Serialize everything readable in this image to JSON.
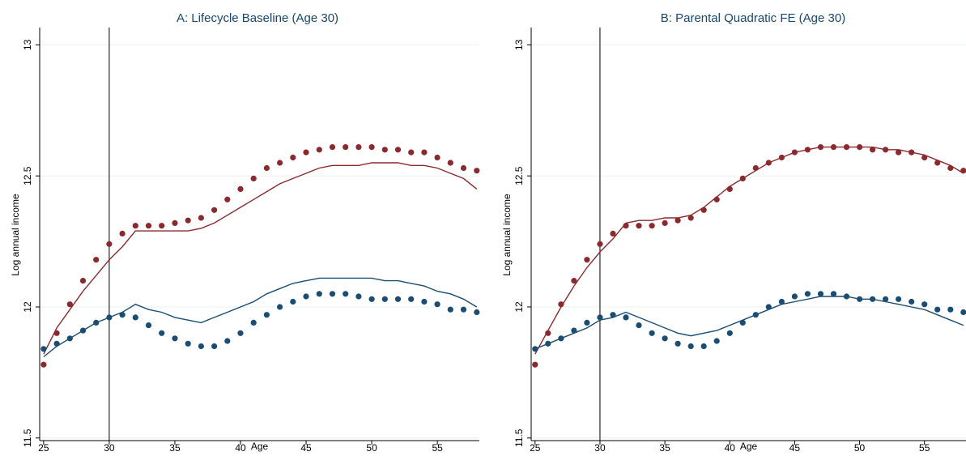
{
  "chart_data": [
    {
      "type": "scatter",
      "title": "A: Lifecycle Baseline (Age 30)",
      "xlabel": "Age",
      "ylabel": "Log annual income",
      "xlim": [
        24.7,
        58.2
      ],
      "ylim": [
        11.49,
        13.06
      ],
      "xticks": [
        25,
        30,
        35,
        40,
        45,
        50,
        55
      ],
      "yticks": [
        11.5,
        12,
        12.5,
        13
      ],
      "ytick_labels": [
        "11.5",
        "12",
        "12.5",
        "13"
      ],
      "reference_x": 30,
      "grid": "horizontal",
      "series": [
        {
          "kind": "points",
          "color": "#8b2a2e",
          "x": [
            25,
            26,
            27,
            28,
            29,
            30,
            31,
            32,
            33,
            34,
            35,
            36,
            37,
            38,
            39,
            40,
            41,
            42,
            43,
            44,
            45,
            46,
            47,
            48,
            49,
            50,
            51,
            52,
            53,
            54,
            55,
            56,
            57,
            58
          ],
          "y": [
            11.78,
            11.9,
            12.01,
            12.1,
            12.18,
            12.24,
            12.28,
            12.31,
            12.31,
            12.31,
            12.32,
            12.33,
            12.34,
            12.37,
            12.41,
            12.45,
            12.49,
            12.53,
            12.55,
            12.57,
            12.59,
            12.6,
            12.61,
            12.61,
            12.61,
            12.61,
            12.6,
            12.6,
            12.59,
            12.59,
            12.57,
            12.55,
            12.53,
            12.52
          ]
        },
        {
          "kind": "points",
          "color": "#1b4c72",
          "x": [
            25,
            26,
            27,
            28,
            29,
            30,
            31,
            32,
            33,
            34,
            35,
            36,
            37,
            38,
            39,
            40,
            41,
            42,
            43,
            44,
            45,
            46,
            47,
            48,
            49,
            50,
            51,
            52,
            53,
            54,
            55,
            56,
            57,
            58
          ],
          "y": [
            11.84,
            11.86,
            11.88,
            11.91,
            11.94,
            11.96,
            11.97,
            11.96,
            11.93,
            11.9,
            11.88,
            11.86,
            11.85,
            11.85,
            11.87,
            11.9,
            11.94,
            11.97,
            12.0,
            12.02,
            12.04,
            12.05,
            12.05,
            12.05,
            12.04,
            12.03,
            12.03,
            12.03,
            12.03,
            12.02,
            12.01,
            11.99,
            11.99,
            11.98
          ]
        },
        {
          "kind": "line",
          "color": "#8b2a2e",
          "x": [
            25,
            26,
            27,
            28,
            29,
            30,
            31,
            32,
            33,
            34,
            35,
            36,
            37,
            38,
            39,
            40,
            41,
            42,
            43,
            44,
            45,
            46,
            47,
            48,
            49,
            50,
            51,
            52,
            53,
            54,
            55,
            56,
            57,
            58
          ],
          "y": [
            11.82,
            11.92,
            11.99,
            12.06,
            12.12,
            12.18,
            12.23,
            12.29,
            12.29,
            12.29,
            12.29,
            12.29,
            12.3,
            12.32,
            12.35,
            12.38,
            12.41,
            12.44,
            12.47,
            12.49,
            12.51,
            12.53,
            12.54,
            12.54,
            12.54,
            12.55,
            12.55,
            12.55,
            12.54,
            12.54,
            12.53,
            12.51,
            12.49,
            12.45
          ]
        },
        {
          "kind": "line",
          "color": "#1b4c72",
          "x": [
            25,
            26,
            27,
            28,
            29,
            30,
            31,
            32,
            33,
            34,
            35,
            36,
            37,
            38,
            39,
            40,
            41,
            42,
            43,
            44,
            45,
            46,
            47,
            48,
            49,
            50,
            51,
            52,
            53,
            54,
            55,
            56,
            57,
            58
          ],
          "y": [
            11.81,
            11.85,
            11.88,
            11.91,
            11.94,
            11.96,
            11.98,
            12.01,
            11.99,
            11.98,
            11.96,
            11.95,
            11.94,
            11.96,
            11.98,
            12.0,
            12.02,
            12.05,
            12.07,
            12.09,
            12.1,
            12.11,
            12.11,
            12.11,
            12.11,
            12.11,
            12.1,
            12.1,
            12.09,
            12.08,
            12.06,
            12.05,
            12.03,
            12.0
          ]
        }
      ]
    },
    {
      "type": "scatter",
      "title": "B: Parental Quadratic FE (Age 30)",
      "xlabel": "Age",
      "ylabel": "Log annual income",
      "xlim": [
        24.7,
        58.2
      ],
      "ylim": [
        11.49,
        13.06
      ],
      "xticks": [
        25,
        30,
        35,
        40,
        45,
        50,
        55
      ],
      "yticks": [
        11.5,
        12,
        12.5,
        13
      ],
      "ytick_labels": [
        "11.5",
        "12",
        "12.5",
        "13"
      ],
      "reference_x": 30,
      "grid": "horizontal",
      "series": [
        {
          "kind": "points",
          "color": "#8b2a2e",
          "x": [
            25,
            26,
            27,
            28,
            29,
            30,
            31,
            32,
            33,
            34,
            35,
            36,
            37,
            38,
            39,
            40,
            41,
            42,
            43,
            44,
            45,
            46,
            47,
            48,
            49,
            50,
            51,
            52,
            53,
            54,
            55,
            56,
            57,
            58
          ],
          "y": [
            11.78,
            11.9,
            12.01,
            12.1,
            12.18,
            12.24,
            12.28,
            12.31,
            12.31,
            12.31,
            12.32,
            12.33,
            12.34,
            12.37,
            12.41,
            12.45,
            12.49,
            12.53,
            12.55,
            12.57,
            12.59,
            12.6,
            12.61,
            12.61,
            12.61,
            12.61,
            12.6,
            12.6,
            12.59,
            12.59,
            12.57,
            12.55,
            12.53,
            12.52
          ]
        },
        {
          "kind": "points",
          "color": "#1b4c72",
          "x": [
            25,
            26,
            27,
            28,
            29,
            30,
            31,
            32,
            33,
            34,
            35,
            36,
            37,
            38,
            39,
            40,
            41,
            42,
            43,
            44,
            45,
            46,
            47,
            48,
            49,
            50,
            51,
            52,
            53,
            54,
            55,
            56,
            57,
            58
          ],
          "y": [
            11.84,
            11.86,
            11.88,
            11.91,
            11.94,
            11.96,
            11.97,
            11.96,
            11.93,
            11.9,
            11.88,
            11.86,
            11.85,
            11.85,
            11.87,
            11.9,
            11.94,
            11.97,
            12.0,
            12.02,
            12.04,
            12.05,
            12.05,
            12.05,
            12.04,
            12.03,
            12.03,
            12.03,
            12.03,
            12.02,
            12.01,
            11.99,
            11.99,
            11.98
          ]
        },
        {
          "kind": "line",
          "color": "#8b2a2e",
          "x": [
            25,
            26,
            27,
            28,
            29,
            30,
            31,
            32,
            33,
            34,
            35,
            36,
            37,
            38,
            39,
            40,
            41,
            42,
            43,
            44,
            45,
            46,
            47,
            48,
            49,
            50,
            51,
            52,
            53,
            54,
            55,
            56,
            57,
            58
          ],
          "y": [
            11.82,
            11.91,
            12.0,
            12.08,
            12.15,
            12.21,
            12.26,
            12.32,
            12.33,
            12.33,
            12.34,
            12.34,
            12.35,
            12.38,
            12.42,
            12.46,
            12.49,
            12.52,
            12.55,
            12.57,
            12.59,
            12.6,
            12.61,
            12.61,
            12.61,
            12.61,
            12.61,
            12.6,
            12.6,
            12.59,
            12.58,
            12.56,
            12.54,
            12.51
          ]
        },
        {
          "kind": "line",
          "color": "#1b4c72",
          "x": [
            25,
            26,
            27,
            28,
            29,
            30,
            31,
            32,
            33,
            34,
            35,
            36,
            37,
            38,
            39,
            40,
            41,
            42,
            43,
            44,
            45,
            46,
            47,
            48,
            49,
            50,
            51,
            52,
            53,
            54,
            55,
            56,
            57,
            58
          ],
          "y": [
            11.84,
            11.86,
            11.88,
            11.9,
            11.92,
            11.95,
            11.96,
            11.98,
            11.96,
            11.94,
            11.92,
            11.9,
            11.89,
            11.9,
            11.91,
            11.93,
            11.95,
            11.97,
            11.99,
            12.01,
            12.02,
            12.03,
            12.04,
            12.04,
            12.04,
            12.03,
            12.03,
            12.02,
            12.01,
            12.0,
            11.99,
            11.97,
            11.95,
            11.93
          ]
        }
      ]
    }
  ]
}
